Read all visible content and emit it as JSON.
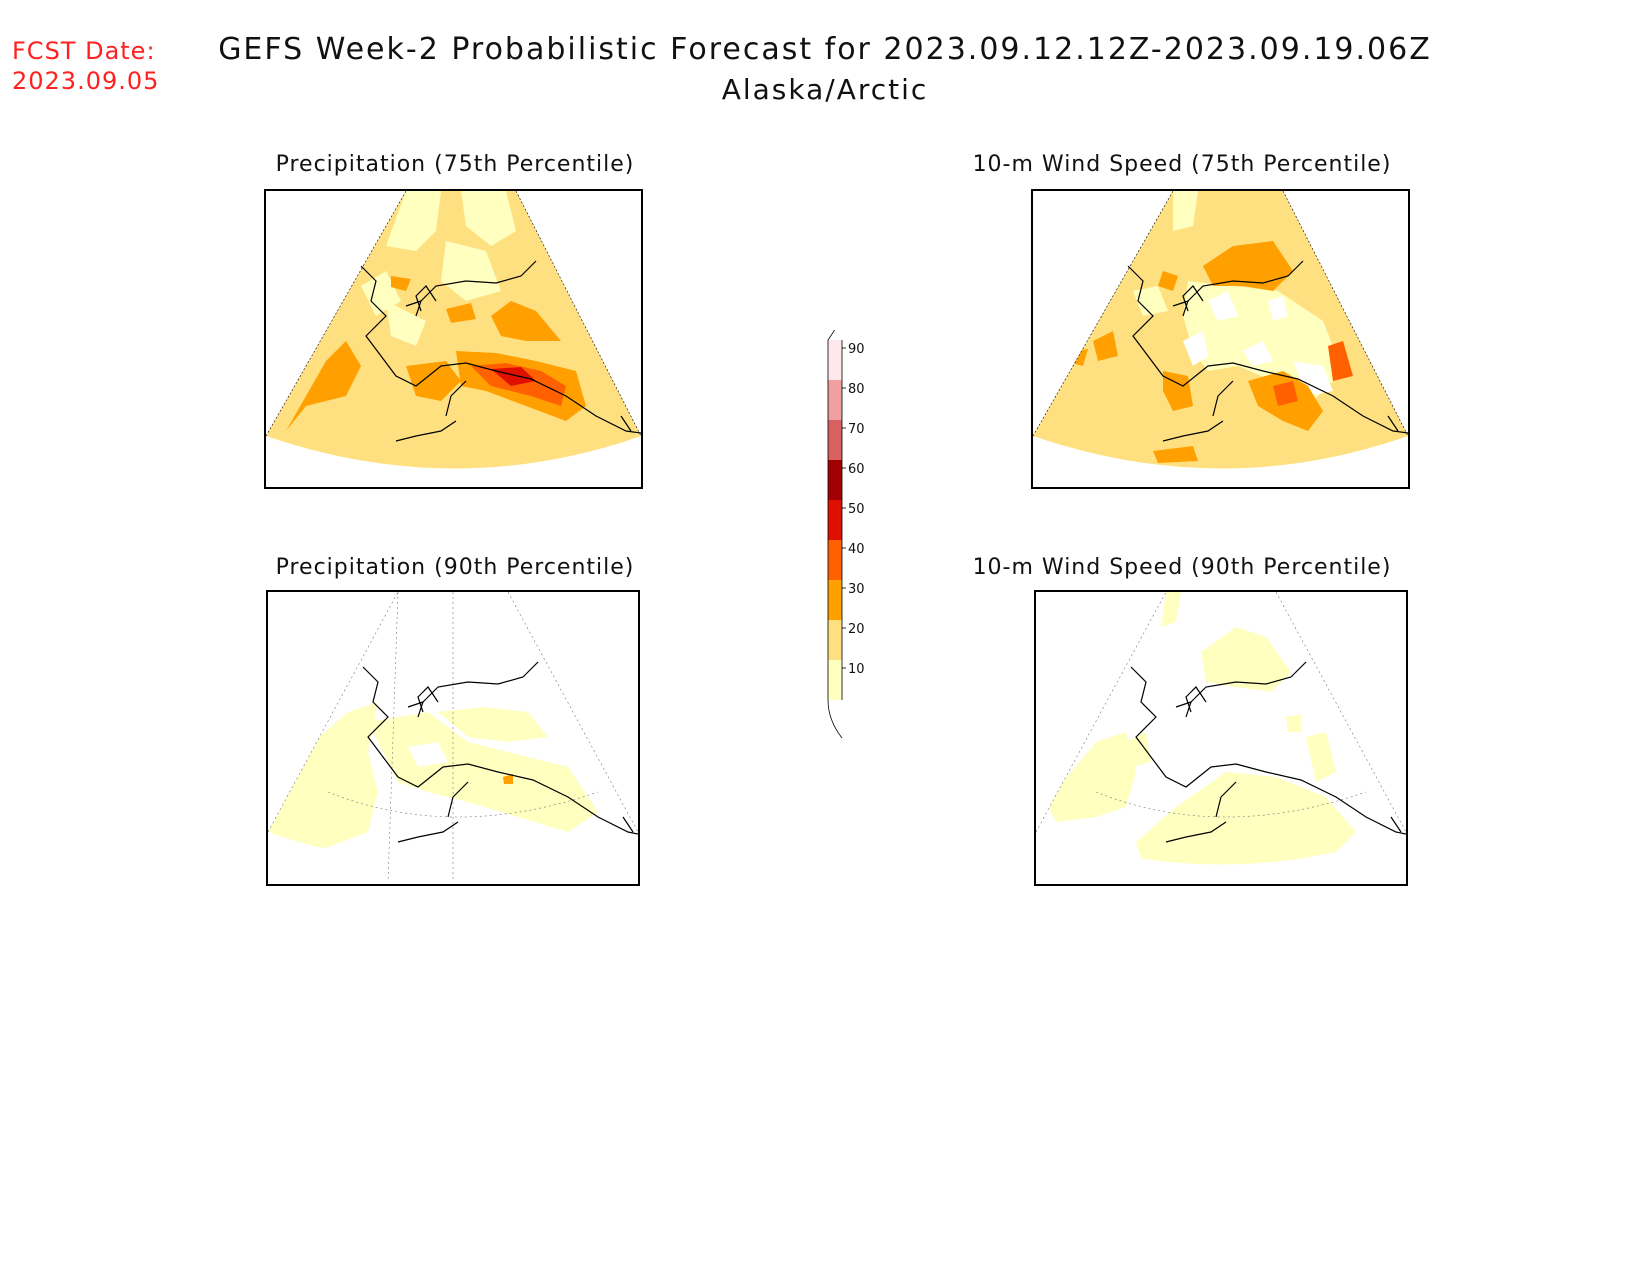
{
  "forecast_date": {
    "label": "FCST Date:",
    "value": "2023.09.05"
  },
  "header": {
    "title": "GEFS Week-2 Probabilistic Forecast for 2023.09.12.12Z-2023.09.19.06Z",
    "subtitle": "Alaska/Arctic"
  },
  "panels": [
    {
      "id": "precip75",
      "title": "Precipitation (75th Percentile)"
    },
    {
      "id": "wind75",
      "title": "10-m Wind Speed (75th Percentile)"
    },
    {
      "id": "precip90",
      "title": "Precipitation (90th Percentile)"
    },
    {
      "id": "wind90",
      "title": "10-m Wind Speed (90th Percentile)"
    }
  ],
  "legend": {
    "levels": [
      "10",
      "20",
      "30",
      "40",
      "50",
      "60",
      "70",
      "80",
      "90"
    ],
    "colors": [
      "#ffffc0",
      "#ffe080",
      "#ffa000",
      "#ff6000",
      "#e01000",
      "#a00000",
      "#d86060",
      "#f0a0a0",
      "#ffe8ec"
    ]
  },
  "colors": {
    "fcst_date": "#ff2020",
    "base_fill": "#ffe080",
    "light_fill": "#ffffc0",
    "mid_fill": "#ffa000",
    "high_fill": "#ff6000",
    "peak_fill": "#e01000"
  }
}
